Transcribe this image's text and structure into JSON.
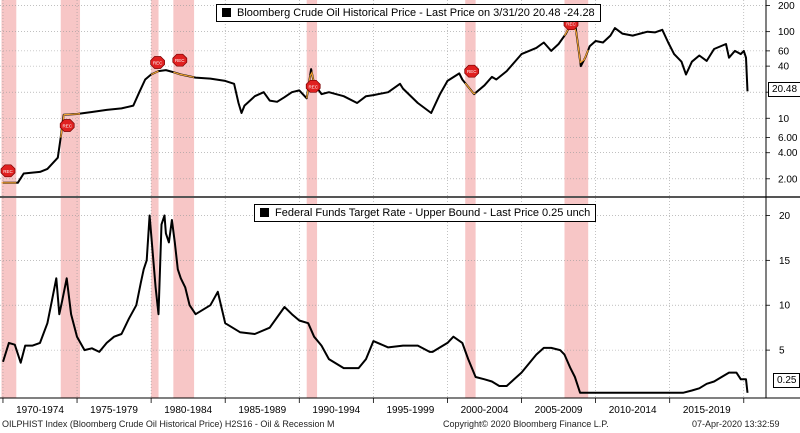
{
  "chart_data": [
    {
      "type": "line",
      "title": "Bloomberg Crude Oil Historical Price - Last Price on 3/31/20 20.48   -24.28",
      "last_value_label": "20.48",
      "scale": "log",
      "ylim": [
        1.3,
        220
      ],
      "yticks": [
        2.0,
        4.0,
        6.0,
        10,
        20,
        40,
        60,
        100,
        200
      ],
      "ytick_labels": [
        "2.00",
        "4.00",
        "6.00",
        "10",
        "20",
        "40",
        "60",
        "100",
        "200"
      ],
      "grid": true,
      "series": [
        {
          "name": "Bloomberg Crude Oil Historical Price",
          "x": [
            1970.0,
            1971.0,
            1971.4,
            1972.5,
            1973.0,
            1973.7,
            1973.9,
            1974.1,
            1975.0,
            1976.0,
            1977.0,
            1978.0,
            1978.8,
            1979.2,
            1979.6,
            1980.0,
            1980.5,
            1981.0,
            1981.5,
            1982.0,
            1983.0,
            1984.0,
            1985.0,
            1985.6,
            1985.9,
            1986.1,
            1986.3,
            1986.5,
            1987.0,
            1987.6,
            1988.0,
            1988.5,
            1989.0,
            1989.5,
            1990.0,
            1990.5,
            1990.8,
            1991.0,
            1991.5,
            1992.0,
            1993.0,
            1993.9,
            1994.5,
            1995.0,
            1996.0,
            1996.8,
            1997.0,
            1998.0,
            1998.9,
            1999.5,
            2000.0,
            2000.8,
            2001.0,
            2001.8,
            2002.5,
            2003.0,
            2003.3,
            2004.0,
            2005.0,
            2006.0,
            2006.5,
            2007.0,
            2007.5,
            2008.0,
            2008.5,
            2008.6,
            2009.0,
            2009.3,
            2009.6,
            2010.0,
            2010.5,
            2011.0,
            2011.3,
            2011.8,
            2012.5,
            2013.0,
            2013.5,
            2014.0,
            2014.5,
            2014.9,
            2015.3,
            2015.8,
            2016.1,
            2016.5,
            2017.0,
            2017.5,
            2018.0,
            2018.8,
            2019.0,
            2019.4,
            2019.8,
            2020.0,
            2020.15,
            2020.25
          ],
          "values": [
            1.8,
            1.8,
            2.3,
            2.4,
            2.6,
            3.5,
            6.0,
            11.0,
            11.2,
            11.8,
            12.5,
            13.0,
            14.0,
            20.0,
            28.0,
            32.0,
            35.0,
            36.0,
            34.0,
            32.0,
            29.5,
            28.7,
            27.0,
            25.0,
            15.0,
            11.5,
            14.0,
            15.0,
            18.0,
            20.0,
            16.0,
            15.5,
            17.5,
            20.0,
            21.0,
            17.0,
            37.0,
            25.0,
            19.0,
            20.0,
            18.0,
            15.0,
            18.0,
            18.5,
            20.0,
            25.0,
            22.0,
            15.0,
            11.5,
            19.0,
            27.0,
            33.0,
            28.0,
            19.0,
            24.0,
            30.0,
            28.0,
            35.0,
            55.0,
            65.0,
            75.0,
            60.0,
            72.0,
            95.0,
            140.0,
            130.0,
            40.0,
            50.0,
            68.0,
            78.0,
            75.0,
            90.0,
            110.0,
            95.0,
            90.0,
            95.0,
            100.0,
            98.0,
            105.0,
            75.0,
            55.0,
            45.0,
            32.0,
            45.0,
            53.0,
            46.0,
            63.0,
            72.0,
            50.0,
            60.0,
            55.0,
            60.0,
            50.0,
            20.48
          ]
        }
      ]
    },
    {
      "type": "line",
      "title": "Federal Funds Target Rate - Upper Bound - Last Price 0.25   unch",
      "last_value_label": "0.25",
      "ylim": [
        0,
        21.5
      ],
      "yticks": [
        5,
        10,
        15,
        20
      ],
      "ytick_labels": [
        "5",
        "10",
        "15",
        "20"
      ],
      "grid": true,
      "series": [
        {
          "name": "Federal Funds Target Rate - Upper Bound",
          "x": [
            1970.0,
            1970.4,
            1970.8,
            1971.2,
            1971.5,
            1971.8,
            1972.0,
            1972.5,
            1973.0,
            1973.3,
            1973.6,
            1973.8,
            1974.0,
            1974.3,
            1974.6,
            1975.0,
            1975.5,
            1976.0,
            1976.5,
            1977.0,
            1977.5,
            1978.0,
            1978.5,
            1979.0,
            1979.3,
            1979.5,
            1979.7,
            1979.9,
            1980.1,
            1980.3,
            1980.5,
            1980.7,
            1980.9,
            1981.0,
            1981.2,
            1981.4,
            1981.6,
            1981.8,
            1982.0,
            1982.3,
            1982.6,
            1983.0,
            1983.5,
            1984.0,
            1984.5,
            1985.0,
            1986.0,
            1987.0,
            1988.0,
            1989.0,
            1989.5,
            1990.0,
            1990.6,
            1991.0,
            1991.5,
            1992.0,
            1993.0,
            1994.0,
            1994.5,
            1995.0,
            1996.0,
            1997.0,
            1998.0,
            1998.8,
            1999.0,
            1999.5,
            2000.0,
            2000.4,
            2001.0,
            2001.4,
            2001.9,
            2002.5,
            2003.0,
            2003.5,
            2004.0,
            2004.5,
            2005.0,
            2006.0,
            2006.5,
            2007.0,
            2007.6,
            2007.9,
            2008.3,
            2008.6,
            2008.95,
            2009.5,
            2012.0,
            2015.9,
            2016.5,
            2017.0,
            2017.5,
            2018.0,
            2018.5,
            2019.0,
            2019.5,
            2019.8,
            2020.15,
            2020.25
          ],
          "values": [
            3.7,
            5.8,
            5.6,
            3.6,
            5.5,
            5.5,
            5.5,
            5.8,
            8.0,
            10.5,
            13.0,
            9.0,
            10.5,
            13.0,
            9.0,
            6.5,
            5.0,
            5.2,
            4.8,
            5.8,
            6.5,
            6.8,
            8.5,
            10.0,
            12.5,
            14.0,
            15.0,
            20.0,
            16.0,
            12.0,
            9.0,
            19.0,
            20.0,
            18.0,
            17.0,
            19.5,
            17.0,
            14.0,
            13.0,
            12.0,
            10.0,
            9.0,
            9.5,
            10.0,
            11.5,
            8.0,
            7.0,
            6.8,
            7.5,
            9.8,
            9.0,
            8.3,
            8.0,
            6.5,
            5.5,
            4.0,
            3.0,
            3.0,
            4.0,
            6.0,
            5.3,
            5.5,
            5.5,
            4.8,
            4.8,
            5.3,
            5.8,
            6.5,
            5.8,
            4.0,
            2.0,
            1.75,
            1.5,
            1.0,
            1.0,
            1.75,
            2.5,
            4.5,
            5.25,
            5.25,
            5.0,
            4.5,
            3.0,
            2.0,
            0.25,
            0.25,
            0.25,
            0.25,
            0.5,
            0.75,
            1.25,
            1.5,
            2.0,
            2.5,
            2.5,
            1.75,
            1.75,
            0.25
          ]
        }
      ]
    }
  ],
  "recessions": [
    [
      1969.9,
      1970.9
    ],
    [
      1973.9,
      1975.2
    ],
    [
      1980.0,
      1980.5
    ],
    [
      1981.5,
      1982.9
    ],
    [
      1990.5,
      1991.2
    ],
    [
      2001.2,
      2001.9
    ],
    [
      2007.9,
      2009.5
    ]
  ],
  "recession_marker_label": "REC",
  "x_axis": {
    "range": [
      1969.8,
      2021.5
    ],
    "labels": [
      "1970-1974",
      "1975-1979",
      "1980-1984",
      "1985-1989",
      "1990-1994",
      "1995-1999",
      "2000-2004",
      "2005-2009",
      "2010-2014",
      "2015-2019"
    ]
  },
  "footer": {
    "left": "OILPHIST Index (Bloomberg Crude Oil Historical Price) H2S16 - Oil & Recession  M",
    "center": "Copyright© 2020 Bloomberg Finance L.P.",
    "right": "07-Apr-2020 13:32:59"
  },
  "colors": {
    "line": "#000000",
    "recession": "#f7c6c6",
    "marker": "#e02020",
    "orange_accent": "#f0a030",
    "grid": "#9a9a9a"
  }
}
